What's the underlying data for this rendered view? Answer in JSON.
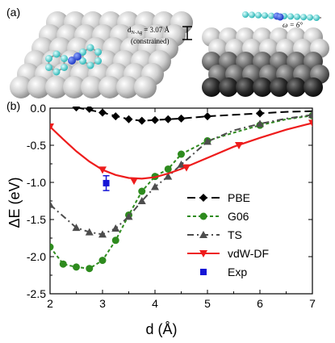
{
  "figure": {
    "panel_a_label": "(a)",
    "panel_b_label": "(b)",
    "distance_label": "d",
    "distance_sub": "N-Ag",
    "distance_value": "= 3.07 Å",
    "constrained_label": "(constrained)",
    "angle_label": "ω = 6°"
  },
  "chart_data": {
    "type": "line",
    "xlabel": "d (Å)",
    "ylabel": "ΔE (eV)",
    "xlim": [
      2,
      7
    ],
    "ylim": [
      -2.5,
      0.0
    ],
    "xticks": [
      2,
      3,
      4,
      5,
      6,
      7
    ],
    "yticks": [
      0.0,
      -0.5,
      -1.0,
      -1.5,
      -2.0,
      -2.5
    ],
    "ytick_labels": [
      "0.0",
      "-0.5",
      "-1.0",
      "-1.5",
      "-2.0",
      "-2.5"
    ],
    "grid": false,
    "legend_position": "lower-right",
    "series": [
      {
        "name": "PBE",
        "color": "#000000",
        "marker": "diamond",
        "dash": "10,5",
        "points": [
          [
            2.5,
            0.01
          ],
          [
            2.75,
            -0.01
          ],
          [
            3.0,
            -0.06
          ],
          [
            3.25,
            -0.11
          ],
          [
            3.5,
            -0.15
          ],
          [
            3.75,
            -0.17
          ],
          [
            4.0,
            -0.16
          ],
          [
            4.25,
            -0.15
          ],
          [
            4.5,
            -0.14
          ],
          [
            5.0,
            -0.11
          ],
          [
            6.0,
            -0.07
          ]
        ],
        "curve": [
          [
            2.5,
            0.01
          ],
          [
            3.0,
            -0.06
          ],
          [
            3.5,
            -0.15
          ],
          [
            3.75,
            -0.17
          ],
          [
            4.0,
            -0.16
          ],
          [
            4.5,
            -0.14
          ],
          [
            5.0,
            -0.11
          ],
          [
            5.5,
            -0.09
          ],
          [
            6.0,
            -0.07
          ],
          [
            6.5,
            -0.05
          ],
          [
            7.0,
            -0.04
          ]
        ]
      },
      {
        "name": "G06",
        "color": "#2e8b1e",
        "marker": "circle",
        "dash": "4,3",
        "points": [
          [
            2.0,
            -1.87
          ],
          [
            2.25,
            -2.1
          ],
          [
            2.5,
            -2.14
          ],
          [
            2.75,
            -2.16
          ],
          [
            3.0,
            -2.05
          ],
          [
            3.25,
            -1.78
          ],
          [
            3.5,
            -1.44
          ],
          [
            3.75,
            -1.12
          ],
          [
            4.0,
            -0.92
          ],
          [
            4.25,
            -0.82
          ],
          [
            4.5,
            -0.62
          ],
          [
            5.0,
            -0.44
          ],
          [
            6.0,
            -0.23
          ],
          [
            7.0,
            -0.1
          ]
        ],
        "curve": [
          [
            2.0,
            -1.87
          ],
          [
            2.25,
            -2.1
          ],
          [
            2.5,
            -2.14
          ],
          [
            2.75,
            -2.16
          ],
          [
            3.0,
            -2.05
          ],
          [
            3.25,
            -1.78
          ],
          [
            3.5,
            -1.44
          ],
          [
            3.75,
            -1.12
          ],
          [
            4.0,
            -0.92
          ],
          [
            4.25,
            -0.82
          ],
          [
            4.5,
            -0.62
          ],
          [
            5.0,
            -0.44
          ],
          [
            5.5,
            -0.33
          ],
          [
            6.0,
            -0.23
          ],
          [
            6.5,
            -0.15
          ],
          [
            7.0,
            -0.1
          ]
        ]
      },
      {
        "name": "TS",
        "color": "#4d4d4d",
        "marker": "triangle-up",
        "dash": "8,4,2,4",
        "points": [
          [
            2.0,
            -1.3
          ],
          [
            2.5,
            -1.61
          ],
          [
            2.75,
            -1.67
          ],
          [
            3.0,
            -1.7
          ],
          [
            3.25,
            -1.62
          ],
          [
            3.5,
            -1.46
          ],
          [
            3.75,
            -1.25
          ],
          [
            4.0,
            -1.06
          ],
          [
            4.25,
            -0.92
          ],
          [
            4.5,
            -0.76
          ],
          [
            5.0,
            -0.45
          ],
          [
            6.0,
            -0.21
          ],
          [
            7.0,
            -0.09
          ]
        ],
        "curve": [
          [
            2.0,
            -1.3
          ],
          [
            2.5,
            -1.61
          ],
          [
            2.75,
            -1.67
          ],
          [
            3.0,
            -1.7
          ],
          [
            3.25,
            -1.62
          ],
          [
            3.5,
            -1.46
          ],
          [
            3.75,
            -1.25
          ],
          [
            4.0,
            -1.06
          ],
          [
            4.25,
            -0.92
          ],
          [
            4.5,
            -0.76
          ],
          [
            5.0,
            -0.45
          ],
          [
            5.5,
            -0.3
          ],
          [
            6.0,
            -0.21
          ],
          [
            6.5,
            -0.14
          ],
          [
            7.0,
            -0.09
          ]
        ]
      },
      {
        "name": "vdW-DF",
        "color": "#ee1c1c",
        "marker": "triangle-down",
        "dash": "",
        "points": [
          [
            2.0,
            -0.25
          ],
          [
            3.0,
            -0.83
          ],
          [
            3.6,
            -0.98
          ],
          [
            4.6,
            -0.8
          ],
          [
            5.6,
            -0.5
          ],
          [
            7.0,
            -0.2
          ]
        ],
        "curve": [
          [
            2.0,
            -0.25
          ],
          [
            2.25,
            -0.42
          ],
          [
            2.5,
            -0.58
          ],
          [
            2.75,
            -0.72
          ],
          [
            3.0,
            -0.83
          ],
          [
            3.25,
            -0.9
          ],
          [
            3.5,
            -0.94
          ],
          [
            3.75,
            -0.95
          ],
          [
            4.0,
            -0.93
          ],
          [
            4.25,
            -0.88
          ],
          [
            4.5,
            -0.82
          ],
          [
            5.0,
            -0.67
          ],
          [
            5.5,
            -0.52
          ],
          [
            6.0,
            -0.4
          ],
          [
            6.5,
            -0.29
          ],
          [
            7.0,
            -0.2
          ]
        ]
      },
      {
        "name": "Exp",
        "color": "#1515d6",
        "marker": "square",
        "dash": "",
        "points": [
          [
            3.07,
            -1.01
          ]
        ],
        "error": 0.1,
        "curve": []
      }
    ]
  }
}
